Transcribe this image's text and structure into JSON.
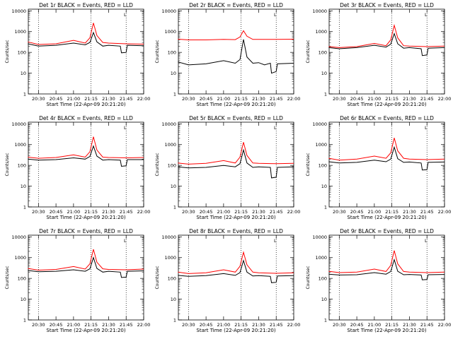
{
  "chart_data": [
    {
      "type": "line",
      "title": "Det 1r BLACK = Events, RED = LLD",
      "xlabel": "Start Time (22-Apr-09 20:21:20)",
      "ylabel": "Counts/sec",
      "x_ticks": [
        "20:30",
        "20:45",
        "21:00",
        "21:15",
        "21:30",
        "21:45",
        "22:00"
      ],
      "y_ticks": [
        "1",
        "10",
        "100",
        "1000",
        "10000"
      ],
      "ylim": [
        1,
        12000
      ],
      "xlim": [
        "20:21:20",
        "22:00"
      ],
      "yscale": "log",
      "vlines": [
        "20:30",
        "21:15",
        "21:45"
      ],
      "corner_mark": "L",
      "series": [
        {
          "color": "#000000",
          "x": [
            "20:21",
            "20:30",
            "20:45",
            "21:00",
            "21:10",
            "21:14",
            "21:17",
            "21:20",
            "21:25",
            "21:30",
            "21:40",
            "21:41",
            "21:45",
            "21:46",
            "22:00"
          ],
          "y": [
            260,
            200,
            220,
            280,
            230,
            300,
            900,
            320,
            200,
            220,
            200,
            95,
            100,
            220,
            210
          ]
        },
        {
          "color": "#ff0000",
          "x": [
            "20:21",
            "20:30",
            "20:45",
            "21:00",
            "21:10",
            "21:14",
            "21:17",
            "21:20",
            "21:25",
            "21:30",
            "21:45",
            "22:00"
          ],
          "y": [
            320,
            240,
            260,
            380,
            280,
            500,
            2600,
            650,
            300,
            280,
            260,
            250
          ]
        }
      ]
    },
    {
      "type": "line",
      "title": "Det 2r BLACK = Events, RED = LLD",
      "xlabel": "Start Time (22-Apr-09 20:21:20)",
      "ylabel": "Counts/sec",
      "x_ticks": [
        "20:30",
        "20:45",
        "21:00",
        "21:15",
        "21:30",
        "21:45",
        "22:00"
      ],
      "y_ticks": [
        "1",
        "10",
        "100",
        "1000",
        "10000"
      ],
      "ylim": [
        1,
        12000
      ],
      "xlim": [
        "20:21:20",
        "22:00"
      ],
      "yscale": "log",
      "vlines": [
        "20:30",
        "21:15",
        "21:45"
      ],
      "corner_mark": "L",
      "series": [
        {
          "color": "#000000",
          "x": [
            "20:21",
            "20:30",
            "20:45",
            "21:00",
            "21:10",
            "21:14",
            "21:17",
            "21:20",
            "21:25",
            "21:30",
            "21:35",
            "21:40",
            "21:41",
            "21:45",
            "21:46",
            "22:00"
          ],
          "y": [
            35,
            25,
            28,
            40,
            30,
            45,
            420,
            60,
            30,
            32,
            25,
            30,
            10,
            12,
            28,
            30
          ]
        },
        {
          "color": "#ff0000",
          "x": [
            "20:21",
            "20:30",
            "20:45",
            "21:00",
            "21:10",
            "21:14",
            "21:17",
            "21:20",
            "21:25",
            "21:30",
            "21:45",
            "22:00"
          ],
          "y": [
            430,
            400,
            400,
            420,
            410,
            550,
            1100,
            600,
            420,
            420,
            420,
            430
          ]
        }
      ]
    },
    {
      "type": "line",
      "title": "Det 3r BLACK = Events, RED = LLD",
      "xlabel": "Start Time (22-Apr-09 20:21:20)",
      "ylabel": "Counts/sec",
      "x_ticks": [
        "20:30",
        "20:45",
        "21:00",
        "21:15",
        "21:30",
        "21:45",
        "22:00"
      ],
      "y_ticks": [
        "1",
        "10",
        "100",
        "1000",
        "10000"
      ],
      "ylim": [
        1,
        12000
      ],
      "xlim": [
        "20:21:20",
        "22:00"
      ],
      "yscale": "log",
      "vlines": [
        "20:30",
        "21:15",
        "21:45"
      ],
      "corner_mark": "L",
      "series": [
        {
          "color": "#000000",
          "x": [
            "20:21",
            "20:30",
            "20:45",
            "21:00",
            "21:10",
            "21:14",
            "21:17",
            "21:20",
            "21:25",
            "21:30",
            "21:40",
            "21:41",
            "21:45",
            "21:46",
            "22:00"
          ],
          "y": [
            170,
            150,
            170,
            220,
            180,
            250,
            800,
            260,
            160,
            170,
            150,
            70,
            75,
            160,
            170
          ]
        },
        {
          "color": "#ff0000",
          "x": [
            "20:21",
            "20:30",
            "20:45",
            "21:00",
            "21:10",
            "21:14",
            "21:17",
            "21:20",
            "21:25",
            "21:30",
            "21:45",
            "22:00"
          ],
          "y": [
            190,
            170,
            190,
            270,
            210,
            400,
            2000,
            500,
            210,
            200,
            190,
            200
          ]
        }
      ]
    },
    {
      "type": "line",
      "title": "Det 4r BLACK = Events, RED = LLD",
      "xlabel": "Start Time (22-Apr-09 20:21:20)",
      "ylabel": "Counts/sec",
      "x_ticks": [
        "20:30",
        "20:45",
        "21:00",
        "21:15",
        "21:30",
        "21:45",
        "22:00"
      ],
      "y_ticks": [
        "1",
        "10",
        "100",
        "1000",
        "10000"
      ],
      "ylim": [
        1,
        12000
      ],
      "xlim": [
        "20:21:20",
        "22:00"
      ],
      "yscale": "log",
      "vlines": [
        "20:30",
        "21:15",
        "21:45"
      ],
      "corner_mark": "L",
      "series": [
        {
          "color": "#000000",
          "x": [
            "20:21",
            "20:30",
            "20:45",
            "21:00",
            "21:10",
            "21:14",
            "21:17",
            "21:20",
            "21:25",
            "21:30",
            "21:40",
            "21:41",
            "21:45",
            "21:46",
            "22:00"
          ],
          "y": [
            200,
            180,
            190,
            230,
            200,
            270,
            850,
            280,
            180,
            190,
            180,
            90,
            95,
            190,
            190
          ]
        },
        {
          "color": "#ff0000",
          "x": [
            "20:21",
            "20:30",
            "20:45",
            "21:00",
            "21:10",
            "21:14",
            "21:17",
            "21:20",
            "21:25",
            "21:30",
            "21:45",
            "22:00"
          ],
          "y": [
            250,
            220,
            240,
            320,
            250,
            450,
            2400,
            550,
            250,
            240,
            230,
            240
          ]
        }
      ]
    },
    {
      "type": "line",
      "title": "Det 5r BLACK = Events, RED = LLD",
      "xlabel": "Start Time (22-Apr-09 20:21:20)",
      "ylabel": "Counts/sec",
      "x_ticks": [
        "20:30",
        "20:45",
        "21:00",
        "21:15",
        "21:30",
        "21:45",
        "22:00"
      ],
      "y_ticks": [
        "1",
        "10",
        "100",
        "1000",
        "10000"
      ],
      "ylim": [
        1,
        12000
      ],
      "xlim": [
        "20:21:20",
        "22:00"
      ],
      "yscale": "log",
      "vlines": [
        "20:30",
        "21:15",
        "21:45"
      ],
      "corner_mark": "L",
      "series": [
        {
          "color": "#000000",
          "x": [
            "20:21",
            "20:30",
            "20:45",
            "21:00",
            "21:10",
            "21:14",
            "21:17",
            "21:20",
            "21:25",
            "21:30",
            "21:40",
            "21:41",
            "21:45",
            "21:46",
            "22:00"
          ],
          "y": [
            85,
            75,
            80,
            100,
            85,
            120,
            550,
            130,
            80,
            85,
            80,
            25,
            27,
            80,
            85
          ]
        },
        {
          "color": "#ff0000",
          "x": [
            "20:21",
            "20:30",
            "20:45",
            "21:00",
            "21:10",
            "21:14",
            "21:17",
            "21:20",
            "21:25",
            "21:30",
            "21:45",
            "22:00"
          ],
          "y": [
            130,
            115,
            125,
            170,
            130,
            250,
            1300,
            300,
            130,
            125,
            120,
            125
          ]
        }
      ]
    },
    {
      "type": "line",
      "title": "Det 6r BLACK = Events, RED = LLD",
      "xlabel": "Start Time (22-Apr-09 20:21:20)",
      "ylabel": "Counts/sec",
      "x_ticks": [
        "20:30",
        "20:45",
        "21:00",
        "21:15",
        "21:30",
        "21:45",
        "22:00"
      ],
      "y_ticks": [
        "1",
        "10",
        "100",
        "1000",
        "10000"
      ],
      "ylim": [
        1,
        12000
      ],
      "xlim": [
        "20:21:20",
        "22:00"
      ],
      "yscale": "log",
      "vlines": [
        "20:30",
        "21:15",
        "21:45"
      ],
      "corner_mark": "L",
      "series": [
        {
          "color": "#000000",
          "x": [
            "20:21",
            "20:30",
            "20:45",
            "21:00",
            "21:10",
            "21:14",
            "21:17",
            "21:20",
            "21:25",
            "21:30",
            "21:40",
            "21:41",
            "21:45",
            "21:46",
            "22:00"
          ],
          "y": [
            150,
            130,
            140,
            180,
            150,
            200,
            750,
            210,
            140,
            145,
            130,
            60,
            62,
            140,
            145
          ]
        },
        {
          "color": "#ff0000",
          "x": [
            "20:21",
            "20:30",
            "20:45",
            "21:00",
            "21:10",
            "21:14",
            "21:17",
            "21:20",
            "21:25",
            "21:30",
            "21:45",
            "22:00"
          ],
          "y": [
            220,
            180,
            200,
            280,
            220,
            400,
            2100,
            500,
            220,
            200,
            190,
            200
          ]
        }
      ]
    },
    {
      "type": "line",
      "title": "Det 7r BLACK = Events, RED = LLD",
      "xlabel": "Start Time (22-Apr-09 20:21:20)",
      "ylabel": "Counts/sec",
      "x_ticks": [
        "20:30",
        "20:45",
        "21:00",
        "21:15",
        "21:30",
        "21:45",
        "22:00"
      ],
      "y_ticks": [
        "1",
        "10",
        "100",
        "1000",
        "10000"
      ],
      "ylim": [
        1,
        12000
      ],
      "xlim": [
        "20:21:20",
        "22:00"
      ],
      "yscale": "log",
      "vlines": [
        "20:30",
        "21:15",
        "21:45"
      ],
      "corner_mark": "L",
      "series": [
        {
          "color": "#000000",
          "x": [
            "20:21",
            "20:30",
            "20:45",
            "21:00",
            "21:10",
            "21:14",
            "21:17",
            "21:20",
            "21:25",
            "21:30",
            "21:40",
            "21:41",
            "21:45",
            "21:46",
            "22:00"
          ],
          "y": [
            240,
            210,
            220,
            260,
            220,
            290,
            1000,
            300,
            200,
            220,
            200,
            110,
            115,
            220,
            230
          ]
        },
        {
          "color": "#ff0000",
          "x": [
            "20:21",
            "20:30",
            "20:45",
            "21:00",
            "21:10",
            "21:14",
            "21:17",
            "21:20",
            "21:25",
            "21:30",
            "21:45",
            "22:00"
          ],
          "y": [
            300,
            250,
            270,
            370,
            280,
            500,
            2500,
            600,
            290,
            270,
            260,
            280
          ]
        }
      ]
    },
    {
      "type": "line",
      "title": "Det 8r BLACK = Events, RED = LLD",
      "xlabel": "Start Time (22-Apr-09 20:21:20)",
      "ylabel": "Counts/sec",
      "x_ticks": [
        "20:30",
        "20:45",
        "21:00",
        "21:15",
        "21:30",
        "21:45",
        "22:00"
      ],
      "y_ticks": [
        "1",
        "10",
        "100",
        "1000",
        "10000"
      ],
      "ylim": [
        1,
        12000
      ],
      "xlim": [
        "20:21:20",
        "22:00"
      ],
      "yscale": "log",
      "vlines": [
        "20:30",
        "21:15",
        "21:45"
      ],
      "corner_mark": "L",
      "series": [
        {
          "color": "#000000",
          "x": [
            "20:21",
            "20:30",
            "20:45",
            "21:00",
            "21:10",
            "21:14",
            "21:17",
            "21:20",
            "21:25",
            "21:30",
            "21:40",
            "21:41",
            "21:45",
            "21:46",
            "22:00"
          ],
          "y": [
            140,
            125,
            135,
            170,
            140,
            190,
            720,
            200,
            130,
            135,
            125,
            62,
            65,
            130,
            135
          ]
        },
        {
          "color": "#ff0000",
          "x": [
            "20:21",
            "20:30",
            "20:45",
            "21:00",
            "21:10",
            "21:14",
            "21:17",
            "21:20",
            "21:25",
            "21:30",
            "21:45",
            "22:00"
          ],
          "y": [
            200,
            170,
            185,
            260,
            200,
            380,
            1800,
            450,
            200,
            185,
            175,
            185
          ]
        }
      ]
    },
    {
      "type": "line",
      "title": "Det 9r BLACK = Events, RED = LLD",
      "xlabel": "Start Time (22-Apr-09 20:21:20)",
      "ylabel": "Counts/sec",
      "x_ticks": [
        "20:30",
        "20:45",
        "21:00",
        "21:15",
        "21:30",
        "21:45",
        "22:00"
      ],
      "y_ticks": [
        "1",
        "10",
        "100",
        "1000",
        "10000"
      ],
      "ylim": [
        1,
        12000
      ],
      "xlim": [
        "20:21:20",
        "22:00"
      ],
      "yscale": "log",
      "vlines": [
        "20:30",
        "21:15",
        "21:45"
      ],
      "corner_mark": "L",
      "series": [
        {
          "color": "#000000",
          "x": [
            "20:21",
            "20:30",
            "20:45",
            "21:00",
            "21:10",
            "21:14",
            "21:17",
            "21:20",
            "21:25",
            "21:30",
            "21:40",
            "21:41",
            "21:45",
            "21:46",
            "22:00"
          ],
          "y": [
            160,
            145,
            150,
            190,
            160,
            215,
            800,
            220,
            150,
            155,
            145,
            85,
            88,
            150,
            155
          ]
        },
        {
          "color": "#ff0000",
          "x": [
            "20:21",
            "20:30",
            "20:45",
            "21:00",
            "21:10",
            "21:14",
            "21:17",
            "21:20",
            "21:25",
            "21:30",
            "21:45",
            "22:00"
          ],
          "y": [
            220,
            190,
            200,
            280,
            215,
            420,
            2200,
            500,
            215,
            200,
            190,
            200
          ]
        }
      ]
    }
  ]
}
